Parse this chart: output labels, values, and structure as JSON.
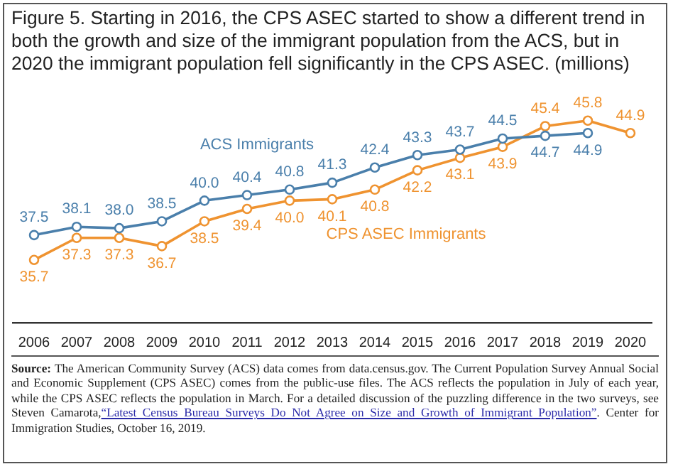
{
  "chart_data": {
    "type": "line",
    "title": "Figure 5. Starting in 2016, the CPS ASEC started to show a different trend in both the growth and size of the immigrant population from the ACS, but in 2020 the immigrant population fell significantly in the CPS ASEC. (millions)",
    "categories": [
      "2006",
      "2007",
      "2008",
      "2009",
      "2010",
      "2011",
      "2012",
      "2013",
      "2014",
      "2015",
      "2016",
      "2017",
      "2018",
      "2019",
      "2020"
    ],
    "series": [
      {
        "name": "ACS Immigrants",
        "color": "#4a7fab",
        "values": [
          37.5,
          38.1,
          38.0,
          38.5,
          40.0,
          40.4,
          40.8,
          41.3,
          42.4,
          43.3,
          43.7,
          44.5,
          44.7,
          44.9,
          null
        ],
        "value_labels": [
          "37.5",
          "38.1",
          "38.0",
          "38.5",
          "40.0",
          "40.4",
          "40.8",
          "41.3",
          "42.4",
          "43.3",
          "43.7",
          "44.5",
          "44.7",
          "44.9",
          null
        ]
      },
      {
        "name": "CPS ASEC Immigrants",
        "color": "#ef9330",
        "values": [
          35.7,
          37.3,
          37.3,
          36.7,
          38.5,
          39.4,
          40.0,
          40.1,
          40.8,
          42.2,
          43.1,
          43.9,
          45.4,
          45.8,
          44.9
        ],
        "value_labels": [
          "35.7",
          "37.3",
          "37.3",
          "36.7",
          "38.5",
          "39.4",
          "40.0",
          "40.1",
          "40.8",
          "42.2",
          "43.1",
          "43.9",
          "45.4",
          "45.8",
          "44.9"
        ]
      }
    ],
    "marker": "circle",
    "line_style": "solid",
    "grid": false,
    "legend": false,
    "annotations": [
      "Source:",
      "The American Community Survey (ACS) data comes from data.census.gov. The Current Population Survey Annual Social and Economic Supplement (CPS ASEC) comes from the public-use files. The ACS reflects the population in July of each year, while the CPS ASEC reflects the population in March. For a detailed discussion of the puzzling difference in the two surveys, see Steven Camarota,",
      "“Latest Census Bureau Surveys Do Not Agree on Size and Growth of Immigrant Population”",
      ". Center for Immigration Studies, October 16, 2019."
    ]
  }
}
